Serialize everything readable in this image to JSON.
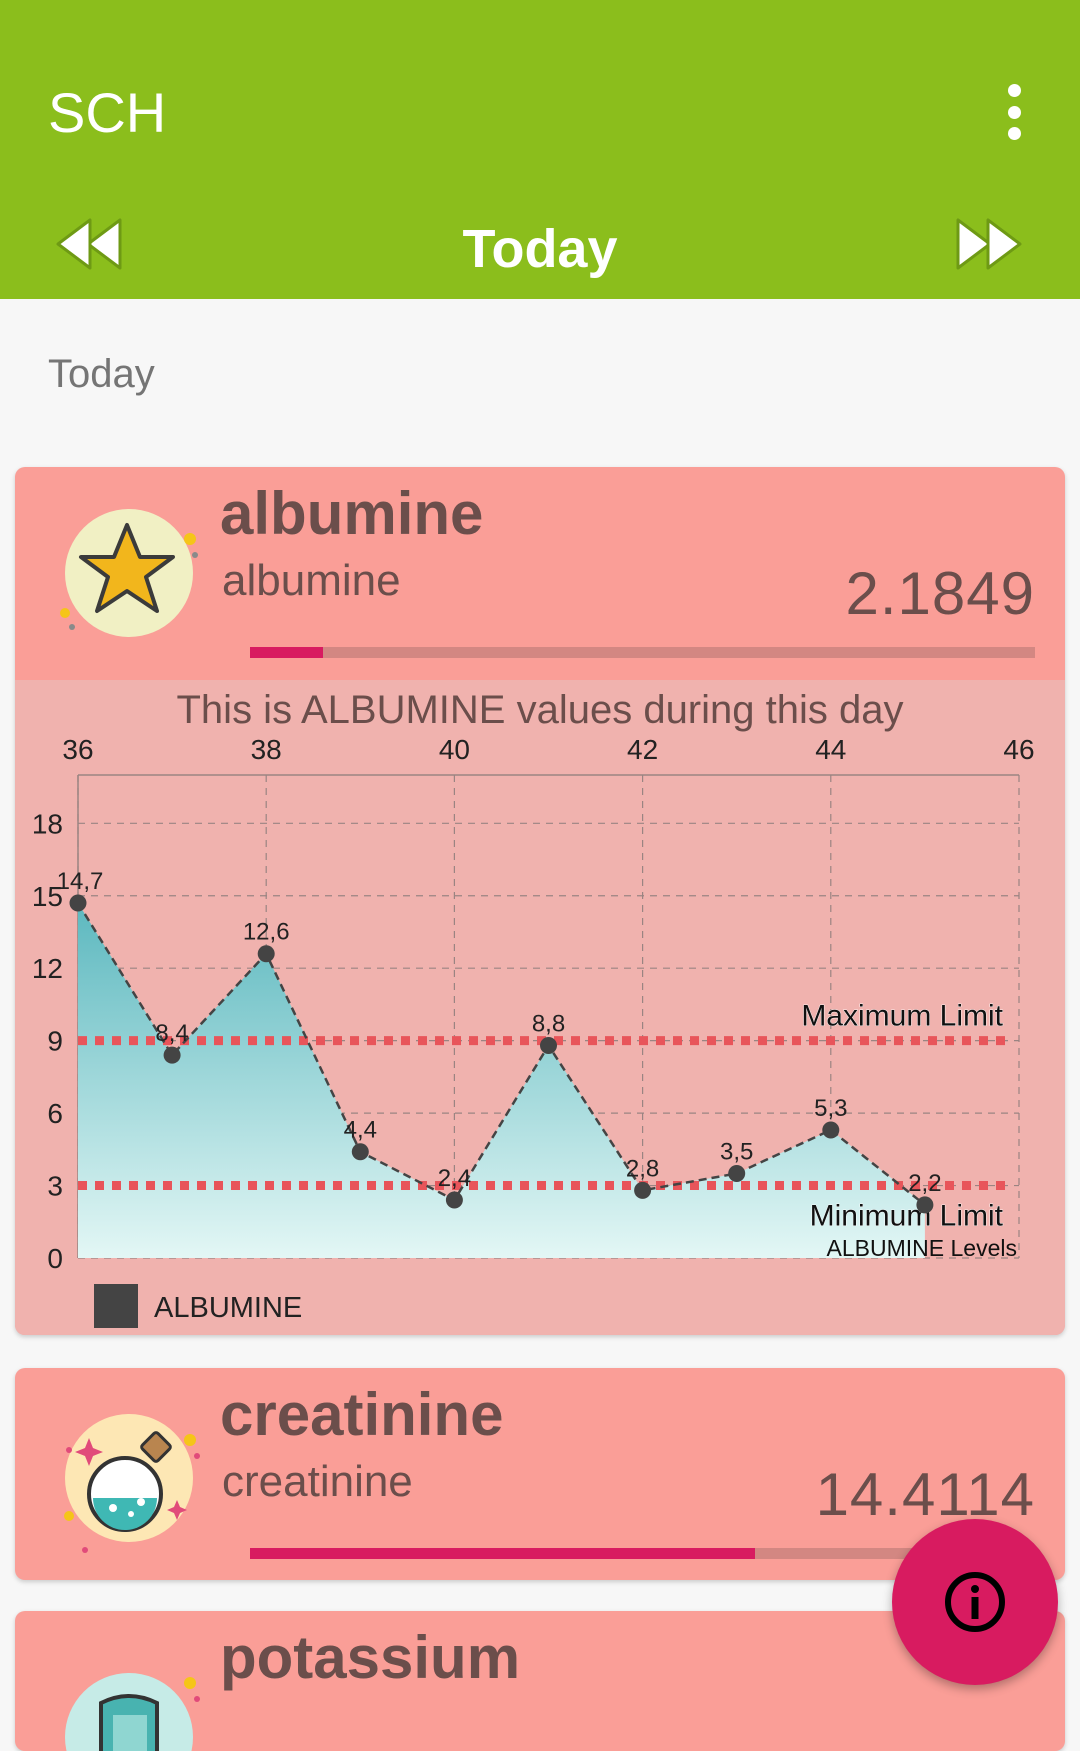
{
  "app": {
    "title": "SCH",
    "nav_title": "Today"
  },
  "section_label": "Today",
  "cards": [
    {
      "title": "albumine",
      "subtitle": "albumine",
      "value": "2.1849",
      "progress": 0.093,
      "icon": "star-icon"
    },
    {
      "title": "creatinine",
      "subtitle": "creatinine",
      "value": "14.4114",
      "progress": 0.643,
      "icon": "potion-icon"
    },
    {
      "title": "potassium",
      "icon": "shield-icon"
    }
  ],
  "chart_data": {
    "type": "line",
    "title": "This is ALBUMINE values during this day",
    "x": [
      36,
      37,
      38,
      39,
      40,
      41,
      42,
      43,
      44,
      45
    ],
    "series": [
      {
        "name": "ALBUMINE",
        "values": [
          14.7,
          8.4,
          12.6,
          4.4,
          2.4,
          8.8,
          2.8,
          3.5,
          5.3,
          2.2
        ],
        "value_labels": [
          "14,7",
          "8,4",
          "12,6",
          "4,4",
          "2,4",
          "8,8",
          "2,8",
          "3,5",
          "5,3",
          "2,2"
        ]
      }
    ],
    "xlim": [
      36,
      46
    ],
    "ylim": [
      0,
      20
    ],
    "x_ticks": [
      "36",
      "38",
      "40",
      "42",
      "44",
      "46"
    ],
    "x_tick_values": [
      36,
      38,
      40,
      42,
      44,
      46
    ],
    "y_ticks": [
      "0",
      "3",
      "6",
      "9",
      "12",
      "15",
      "18"
    ],
    "y_tick_values": [
      0,
      3,
      6,
      9,
      12,
      15,
      18
    ],
    "x_axis_position": "top",
    "grid": true,
    "limits": [
      {
        "label": "Maximum Limit",
        "value": 9
      },
      {
        "label": "Minimum Limit",
        "value": 3
      }
    ],
    "description": "ALBUMINE Levels",
    "legend": {
      "label": "ALBUMINE",
      "position": "bottom-left"
    },
    "colors": {
      "line": "#444444",
      "limit": "#e8555a",
      "fill_top": "#5cb8bf",
      "fill_bottom": "#e3f7f5"
    }
  },
  "colors": {
    "appbar": "#8bbe1c",
    "card": "#fa9e97",
    "accent": "#d81b60"
  },
  "fab": {
    "icon": "info-icon"
  }
}
